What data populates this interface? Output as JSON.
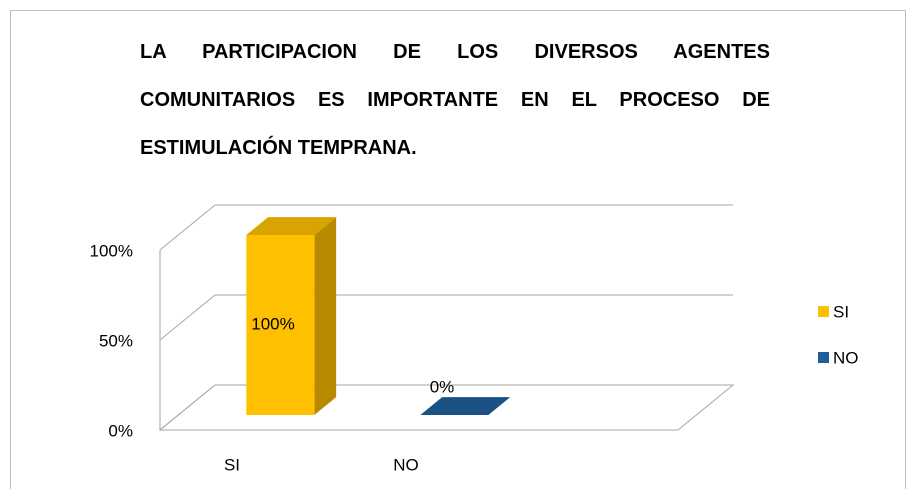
{
  "chart_data": {
    "type": "bar3d",
    "title": "LA PARTICIPACION DE LOS DIVERSOS AGENTES COMUNITARIOS ES IMPORTANTE EN EL PROCESO DE ESTIMULACIÓN TEMPRANA.",
    "categories": [
      "SI",
      "NO"
    ],
    "values": [
      100,
      0
    ],
    "value_labels": [
      "100%",
      "0%"
    ],
    "colors": [
      "#ffc000",
      "#1f5f99"
    ],
    "ylim": [
      0,
      100
    ],
    "yticks": [
      {
        "value": 0,
        "label": "0%"
      },
      {
        "value": 50,
        "label": "50%"
      },
      {
        "value": 100,
        "label": "100%"
      }
    ],
    "grid": true,
    "legend": "right"
  }
}
